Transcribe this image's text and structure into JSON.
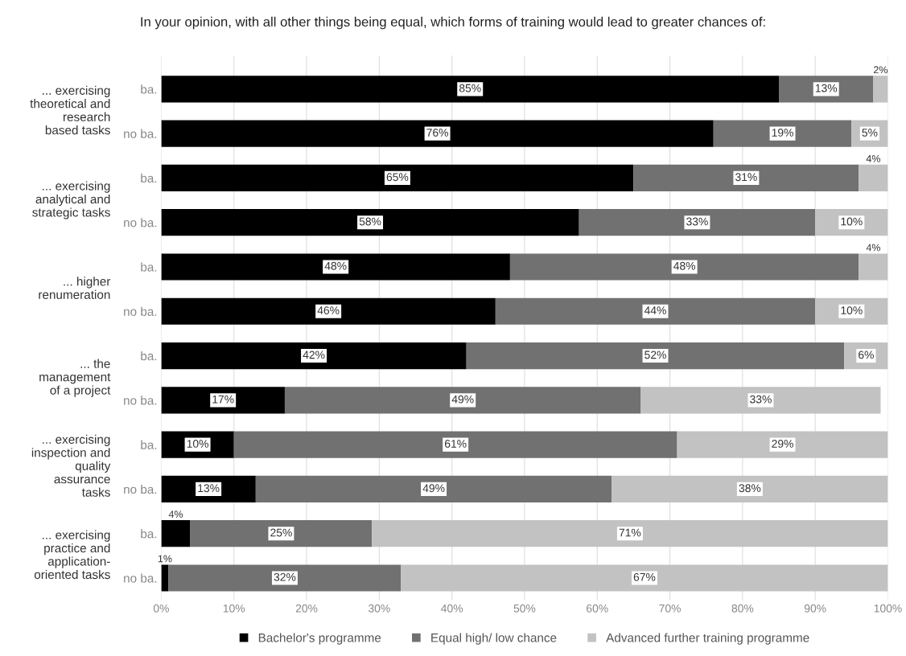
{
  "chart_data": {
    "type": "bar",
    "orientation": "horizontal",
    "stacked": true,
    "title": "In your opinion, with all other things being equal, which forms of training would lead to greater chances of:",
    "categories": [
      "ba.",
      "no ba.",
      "ba.",
      "no ba.",
      "ba.",
      "no ba.",
      "ba.",
      "no ba.",
      "ba.",
      "no ba.",
      "ba.",
      "no ba."
    ],
    "annotations": [
      "... exercising\ntheoretical and\nresearch\nbased tasks",
      "... exercising\nanalytical and\nstrategic tasks",
      "... higher\nrenumeration",
      "... the\nmanagement\nof a project",
      "... exercising\ninspection and\nquality\nassurance\ntasks",
      "... exercising\npractice and\napplication-\noriented tasks"
    ],
    "series": [
      {
        "name": "Bachelor's programme",
        "color": "#000000",
        "values": [
          85,
          76,
          65,
          57.5,
          48,
          46,
          42,
          17,
          10,
          13,
          4,
          1
        ],
        "value_labels": [
          "85%",
          "76%",
          "65%",
          "58%",
          "48%",
          "46%",
          "42%",
          "17%",
          "10%",
          "13%",
          "4%",
          "1%"
        ]
      },
      {
        "name": "Equal high/ low chance",
        "color": "#717171",
        "values": [
          13,
          19,
          31,
          32.5,
          48,
          44,
          52,
          49,
          61,
          49,
          25,
          32
        ],
        "value_labels": [
          "13%",
          "19%",
          "31%",
          "33%",
          "48%",
          "44%",
          "52%",
          "49%",
          "61%",
          "49%",
          "25%",
          "32%"
        ]
      },
      {
        "name": "Advanced further training programme",
        "color": "#c2c2c2",
        "values": [
          2,
          5,
          4,
          10,
          4,
          10,
          6,
          33,
          29,
          38,
          71,
          67
        ],
        "value_labels": [
          "2%",
          "5%",
          "4%",
          "10%",
          "4%",
          "10%",
          "6%",
          "33%",
          "29%",
          "38%",
          "71%",
          "67%"
        ]
      }
    ],
    "xlim": [
      0,
      100
    ],
    "xticks": [
      {
        "value": 0,
        "label": "0%"
      },
      {
        "value": 10,
        "label": "10%"
      },
      {
        "value": 20,
        "label": "20%"
      },
      {
        "value": 30,
        "label": "30%"
      },
      {
        "value": 40,
        "label": "40%"
      },
      {
        "value": 50,
        "label": "50%"
      },
      {
        "value": 60,
        "label": "60%"
      },
      {
        "value": 70,
        "label": "70%"
      },
      {
        "value": 80,
        "label": "80%"
      },
      {
        "value": 90,
        "label": "90%"
      },
      {
        "value": 100,
        "label": "100%"
      }
    ],
    "grid": "x",
    "legend": "bottom"
  }
}
